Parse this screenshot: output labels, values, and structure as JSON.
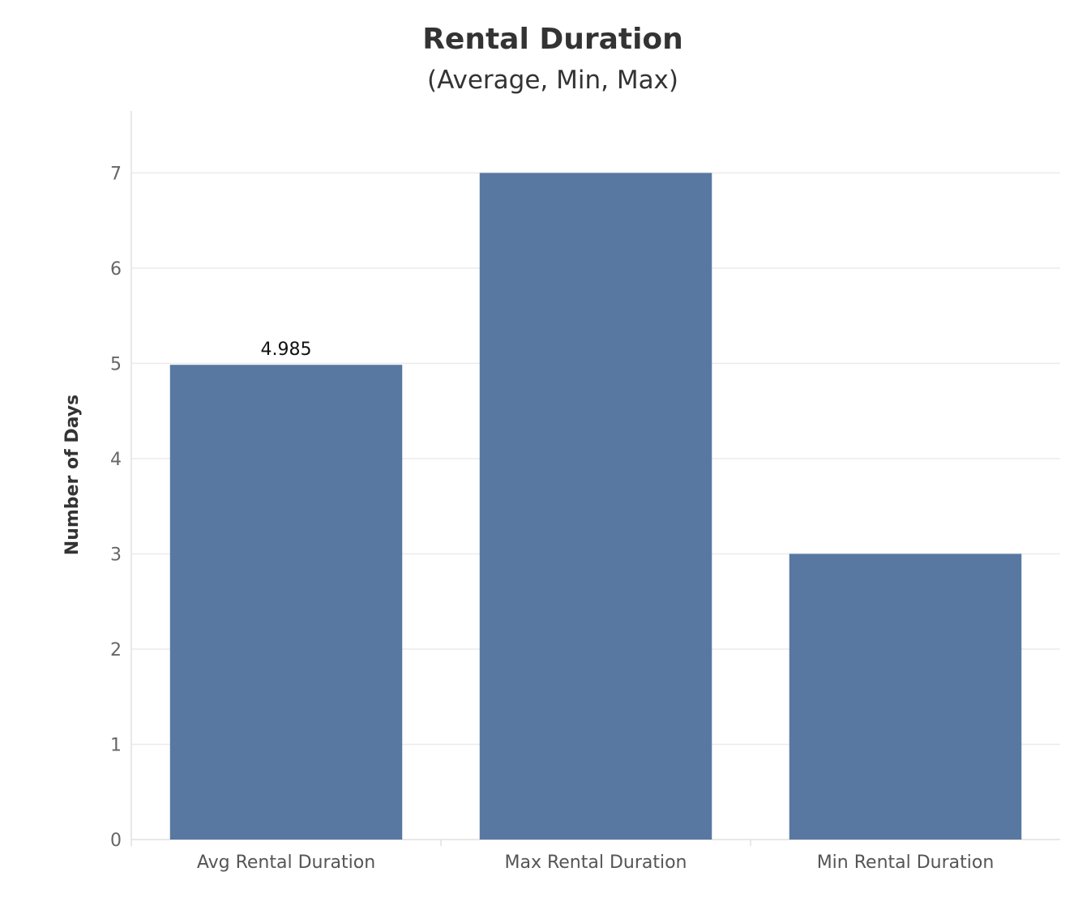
{
  "chart_data": {
    "type": "bar",
    "title": "Rental Duration",
    "subtitle": "(Average, Min, Max)",
    "xlabel": "",
    "ylabel": "Number of Days",
    "categories": [
      "Avg Rental Duration",
      "Max Rental Duration",
      "Min Rental Duration"
    ],
    "values": [
      4.985,
      7,
      3
    ],
    "data_labels": [
      "4.985",
      "",
      ""
    ],
    "ylim": [
      0,
      7.65
    ],
    "yticks": [
      0,
      1,
      2,
      3,
      4,
      5,
      6,
      7
    ],
    "grid": true,
    "legend": "none",
    "colors": {
      "bar": "#5878a1",
      "grid": "#ebebeb",
      "axis": "#e0e0e0"
    }
  }
}
